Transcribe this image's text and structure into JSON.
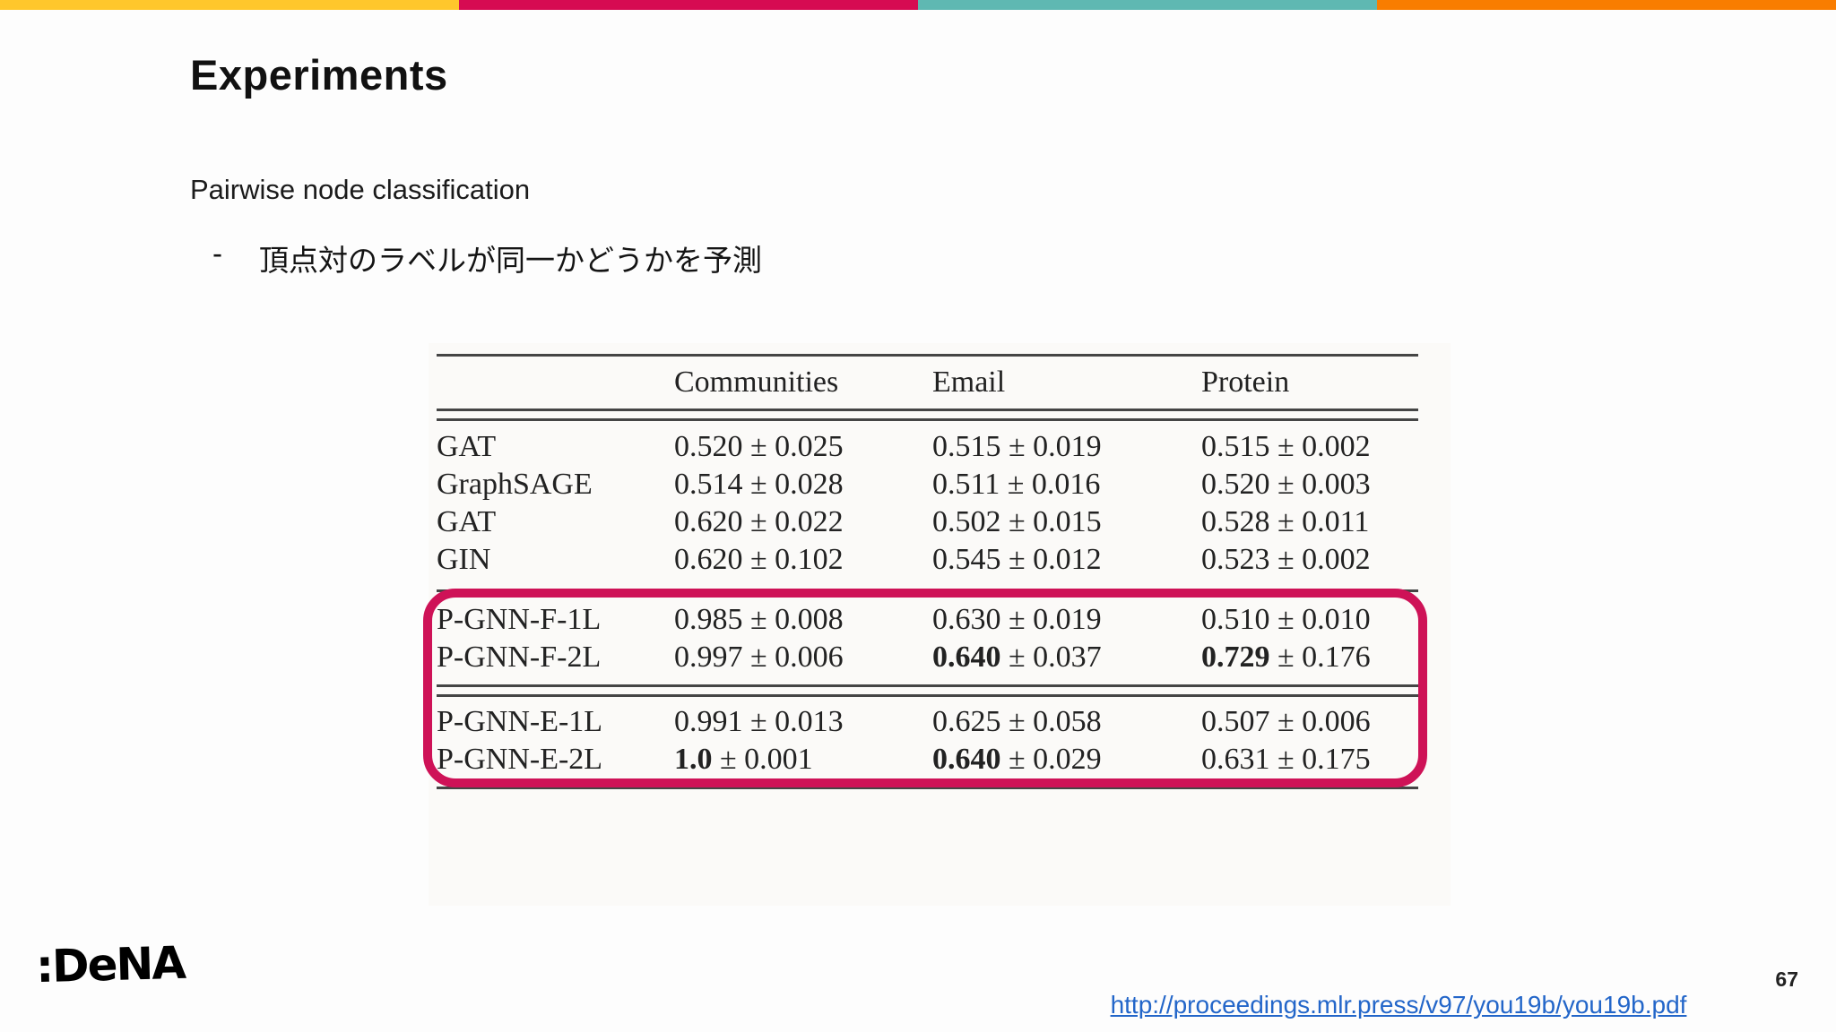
{
  "slide": {
    "title": "Experiments",
    "subtitle": "Pairwise node classification",
    "bullet": {
      "marker": "-",
      "text": "頂点対のラベルが同一かどうかを予測"
    }
  },
  "top_bar": {
    "colors": [
      "#FFC72C",
      "#D60B52",
      "#5FB8B2",
      "#F97D00"
    ]
  },
  "table": {
    "pm": "±",
    "columns": [
      "Communities",
      "Email",
      "Protein"
    ],
    "groups": [
      {
        "rows": [
          {
            "label": "GAT",
            "cells": [
              {
                "m": "0.520",
                "s": "0.025",
                "b": false
              },
              {
                "m": "0.515",
                "s": "0.019",
                "b": false
              },
              {
                "m": "0.515",
                "s": "0.002",
                "b": false
              }
            ]
          },
          {
            "label": "GraphSAGE",
            "cells": [
              {
                "m": "0.514",
                "s": "0.028",
                "b": false
              },
              {
                "m": "0.511",
                "s": "0.016",
                "b": false
              },
              {
                "m": "0.520",
                "s": "0.003",
                "b": false
              }
            ]
          },
          {
            "label": "GAT",
            "cells": [
              {
                "m": "0.620",
                "s": "0.022",
                "b": false
              },
              {
                "m": "0.502",
                "s": "0.015",
                "b": false
              },
              {
                "m": "0.528",
                "s": "0.011",
                "b": false
              }
            ]
          },
          {
            "label": "GIN",
            "cells": [
              {
                "m": "0.620",
                "s": "0.102",
                "b": false
              },
              {
                "m": "0.545",
                "s": "0.012",
                "b": false
              },
              {
                "m": "0.523",
                "s": "0.002",
                "b": false
              }
            ]
          }
        ]
      },
      {
        "rows": [
          {
            "label": "P-GNN-F-1L",
            "cells": [
              {
                "m": "0.985",
                "s": "0.008",
                "b": false
              },
              {
                "m": "0.630",
                "s": "0.019",
                "b": false
              },
              {
                "m": "0.510",
                "s": "0.010",
                "b": false
              }
            ]
          },
          {
            "label": "P-GNN-F-2L",
            "cells": [
              {
                "m": "0.997",
                "s": "0.006",
                "b": false
              },
              {
                "m": "0.640",
                "s": "0.037",
                "b": true
              },
              {
                "m": "0.729",
                "s": "0.176",
                "b": true
              }
            ]
          }
        ]
      },
      {
        "rows": [
          {
            "label": "P-GNN-E-1L",
            "cells": [
              {
                "m": "0.991",
                "s": "0.013",
                "b": false
              },
              {
                "m": "0.625",
                "s": "0.058",
                "b": false
              },
              {
                "m": "0.507",
                "s": "0.006",
                "b": false
              }
            ]
          },
          {
            "label": "P-GNN-E-2L",
            "cells": [
              {
                "m": "1.0",
                "s": "0.001",
                "b": true
              },
              {
                "m": "0.640",
                "s": "0.029",
                "b": true
              },
              {
                "m": "0.631",
                "s": "0.175",
                "b": false
              }
            ]
          }
        ]
      }
    ],
    "highlight_color": "#CE1257"
  },
  "footer": {
    "logo": ":DeNA",
    "page_number": "67",
    "link": "http://proceedings.mlr.press/v97/you19b/you19b.pdf"
  }
}
